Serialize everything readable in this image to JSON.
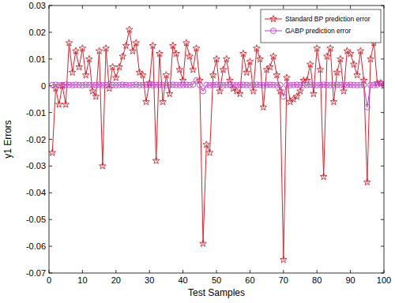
{
  "chart_data": {
    "type": "line",
    "x_label": "Test Samples",
    "y_label": "y1 Errors",
    "x": [
      1,
      2,
      3,
      4,
      5,
      6,
      7,
      8,
      9,
      10,
      11,
      12,
      13,
      14,
      15,
      16,
      17,
      18,
      19,
      20,
      21,
      22,
      23,
      24,
      25,
      26,
      27,
      28,
      29,
      30,
      31,
      32,
      33,
      34,
      35,
      36,
      37,
      38,
      39,
      40,
      41,
      42,
      43,
      44,
      45,
      46,
      47,
      48,
      49,
      50,
      51,
      52,
      53,
      54,
      55,
      56,
      57,
      58,
      59,
      60,
      61,
      62,
      63,
      64,
      65,
      66,
      67,
      68,
      69,
      70,
      71,
      72,
      73,
      74,
      75,
      76,
      77,
      78,
      79,
      80,
      81,
      82,
      83,
      84,
      85,
      86,
      87,
      88,
      89,
      90,
      91,
      92,
      93,
      94,
      95,
      96,
      97,
      98,
      99,
      100
    ],
    "series": [
      {
        "name": "Standard BP prediction error",
        "color": "#e0202a",
        "marker": "star",
        "line_style": "solid",
        "values": [
          -0.025,
          -0.001,
          -0.007,
          0,
          -0.007,
          0.016,
          0.005,
          0.013,
          0.007,
          0.014,
          0.004,
          0.01,
          -0.002,
          -0.004,
          0.013,
          -0.03,
          0.014,
          -0.001,
          0.007,
          0.003,
          0.007,
          0.011,
          0.015,
          0.021,
          0.013,
          0.016,
          0.005,
          0.004,
          -0.006,
          0.001,
          0.015,
          -0.028,
          0.012,
          -0.006,
          0.004,
          -0.003,
          0.015,
          0.012,
          0.006,
          0.002,
          0.016,
          0.011,
          0.006,
          0.014,
          0.002,
          -0.059,
          -0.022,
          -0.025,
          0.004,
          0.01,
          -0.002,
          0.006,
          0.01,
          0.002,
          -0.001,
          -0.002,
          -0.003,
          0.012,
          0.005,
          0.009,
          -0.002,
          0.014,
          0.01,
          -0.008,
          0.006,
          0.007,
          0.011,
          0.004,
          -0.002,
          -0.065,
          0.003,
          -0.006,
          -0.005,
          -0.004,
          -0.002,
          0.002,
          0.002,
          0.008,
          -0.003,
          0.014,
          0.006,
          -0.034,
          0.011,
          0.014,
          -0.006,
          0.005,
          0.01,
          -0.002,
          0.013,
          0.012,
          0.008,
          0.004,
          0.013,
          0.002,
          -0.036,
          0.01,
          0.016,
          0.001,
          0.001,
          0
        ]
      },
      {
        "name": "GABP prediction error",
        "color": "#c03cc8",
        "marker": "circle",
        "line_style": "solid",
        "values": [
          0.0003,
          0.0004,
          0.0002,
          0.0003,
          0.0004,
          0.0003,
          0.0002,
          0.0004,
          0.0003,
          0.0002,
          0.0004,
          0.0003,
          0.0002,
          0.0003,
          0.0004,
          0.0002,
          0.0003,
          0.0005,
          0.0003,
          0.0002,
          0.0003,
          0.0004,
          0.0003,
          0.0002,
          0.0003,
          0.0004,
          0.0002,
          0.0003,
          0.0004,
          0.0003,
          0.0002,
          0.0003,
          0.0004,
          0.0003,
          0.0002,
          0.0003,
          0.0004,
          0.0003,
          0.0002,
          0.0003,
          0.0004,
          0.0003,
          0.0005,
          0.002,
          0.0003,
          -0.002,
          0.0003,
          0.0002,
          0.0003,
          0.0004,
          0.0003,
          0.0002,
          0.0003,
          0.0004,
          0.0003,
          0.0002,
          0.0003,
          0.0004,
          0.0003,
          0.0002,
          0.0003,
          0.0004,
          0.0003,
          0.0002,
          0.0003,
          0.0004,
          0.0003,
          0.0002,
          0.0003,
          -0.004,
          0.0003,
          0.0002,
          0.0003,
          0.0004,
          0.0003,
          0.0002,
          0.0003,
          0.0004,
          0.0003,
          0.0002,
          0.0003,
          0.0004,
          0.0003,
          0.0002,
          0.0003,
          0.0004,
          0.0003,
          0.0002,
          0.0003,
          0.0004,
          0.0003,
          0.0002,
          0.0003,
          0.0004,
          -0.008,
          0.0003,
          0.0002,
          0.0003,
          0.001,
          0.0003
        ]
      }
    ],
    "xlim": [
      0,
      100
    ],
    "xticks": [
      0,
      10,
      20,
      30,
      40,
      50,
      60,
      70,
      80,
      90,
      100
    ],
    "ylim": [
      -0.07,
      0.03
    ],
    "yticks": [
      -0.07,
      -0.06,
      -0.05,
      -0.04,
      -0.03,
      -0.02,
      -0.01,
      0,
      0.01,
      0.02,
      0.03
    ],
    "grid": false,
    "legend": "top-right"
  }
}
